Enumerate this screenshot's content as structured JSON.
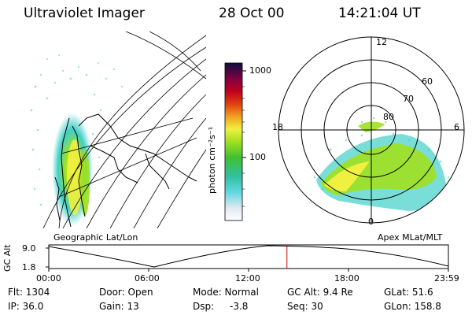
{
  "header": {
    "title": "Ultraviolet Imager",
    "date": "28 Oct 00",
    "time": "14:21:04 UT"
  },
  "colorbar": {
    "label": "photon cm⁻²s⁻¹",
    "ticks": [
      "1000",
      "100"
    ],
    "scale": "log"
  },
  "left_panel": {
    "caption": "Geographic Lat/Lon"
  },
  "polar_panel": {
    "caption": "Apex MLat/MLT",
    "mlt_labels": [
      "12",
      "18",
      "6",
      "0"
    ],
    "lat_labels": [
      "60",
      "70",
      "80"
    ]
  },
  "orbit_strip": {
    "ylabel": "GC Alt",
    "yticks": [
      "9.0",
      "1.8"
    ],
    "xticks": [
      "00:00",
      "06:00",
      "12:00",
      "18:00",
      "23:59"
    ],
    "current_time_fraction": 0.596
  },
  "info": {
    "flt": "Flt: 1304",
    "ip": "IP: 36.0",
    "door": "Door: Open",
    "gain": "Gain: 13",
    "mode": "Mode: Normal",
    "dsp_label": "Dsp:",
    "dsp_value": "-3.8",
    "gcalt": "GC Alt: 9.4 Re",
    "seq": "Seq: 30",
    "glat": "GLat: 51.6",
    "glon": "GLon: 158.8"
  },
  "colors": {
    "aurora_low": "#40d0c8",
    "aurora_mid": "#a0e020",
    "aurora_high": "#f0f040",
    "marker": "#cc0000"
  }
}
